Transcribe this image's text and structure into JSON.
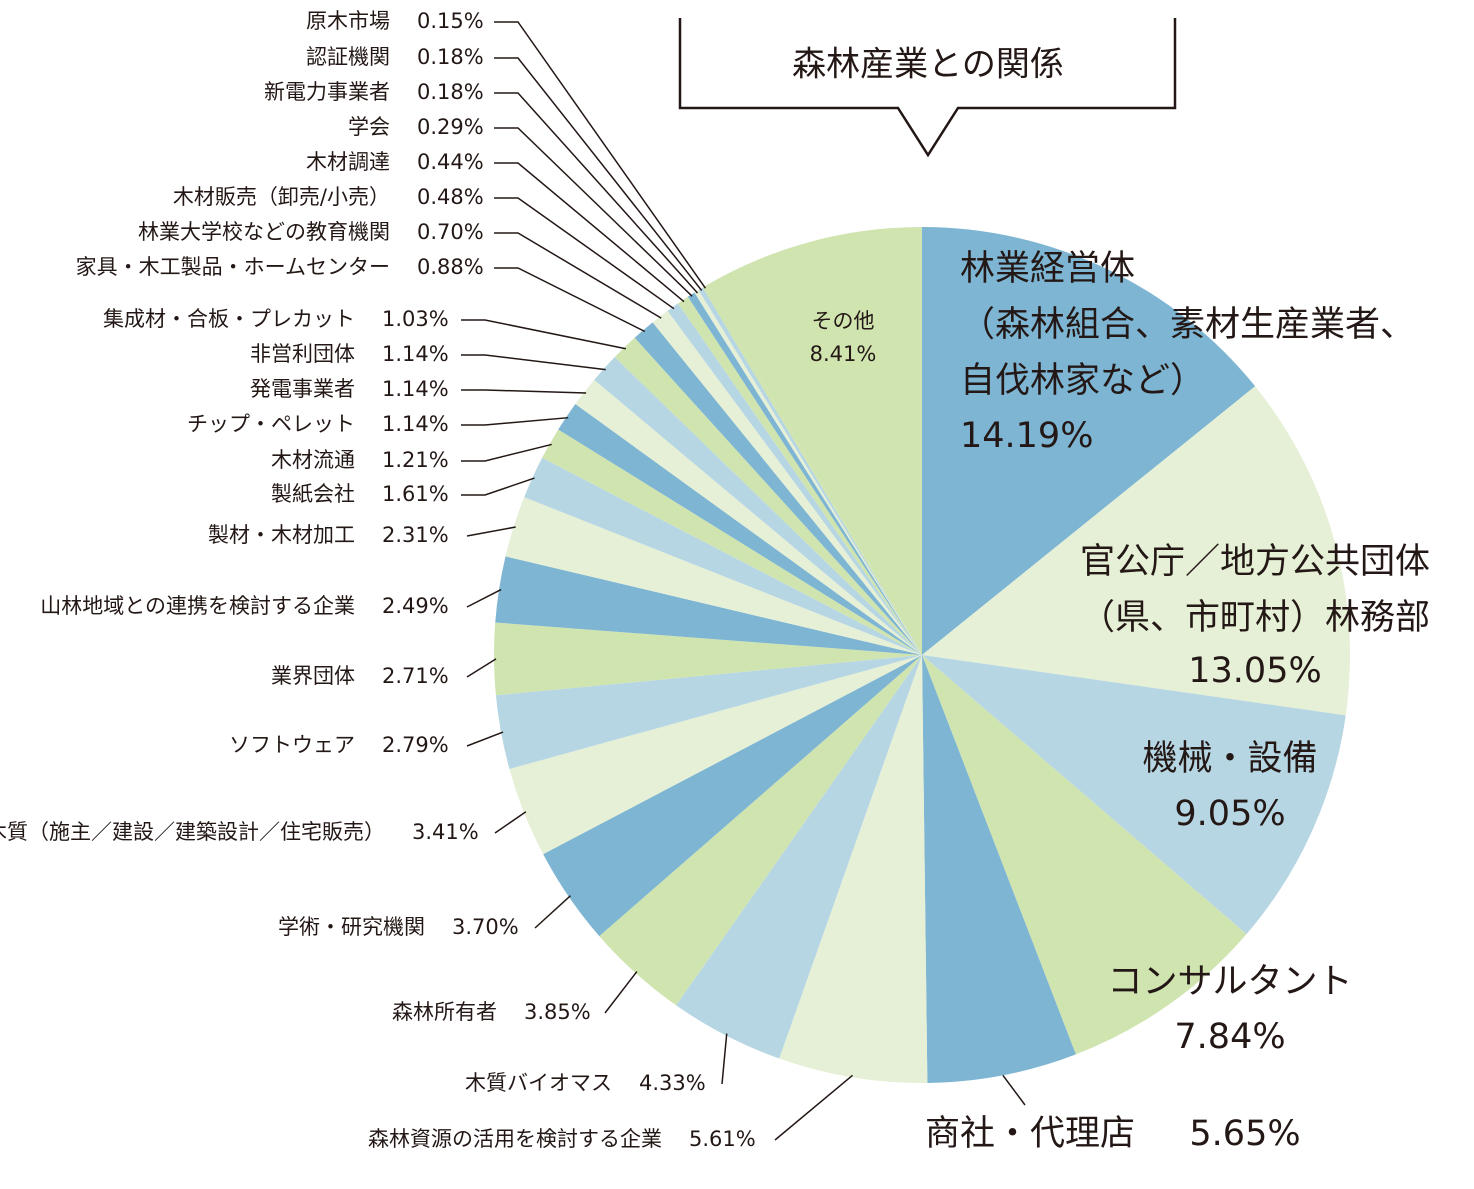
{
  "chart_data": {
    "type": "pie",
    "title": "森林産業との関係",
    "categories": [
      "林業経営体\n（森林組合、素材生産業者、\n自伐林家など）",
      "官公庁／地方公共団体\n（県、市町村）林務部",
      "機械・設備",
      "コンサルタント",
      "商社・代理店",
      "森林資源の活用を検討する企業",
      "木質バイオマス",
      "森林所有者",
      "学術・研究機関",
      "木造・木質（施主／建設／建築設計／住宅販売）",
      "ソフトウェア",
      "業界団体",
      "山林地域との連携を検討する企業",
      "製材・木材加工",
      "製紙会社",
      "木材流通",
      "チップ・ペレット",
      "発電事業者",
      "非営利団体",
      "集成材・合板・プレカット",
      "家具・木工製品・ホームセンター",
      "林業大学校などの教育機関",
      "木材販売（卸売/小売）",
      "木材調達",
      "学会",
      "新電力事業者",
      "認証機関",
      "原木市場",
      "その他"
    ],
    "values": [
      14.19,
      13.05,
      9.05,
      7.84,
      5.65,
      5.61,
      4.33,
      3.85,
      3.7,
      3.41,
      2.79,
      2.71,
      2.49,
      2.31,
      1.61,
      1.21,
      1.14,
      1.14,
      1.14,
      1.03,
      0.88,
      0.7,
      0.48,
      0.44,
      0.29,
      0.18,
      0.18,
      0.15,
      8.41
    ],
    "value_labels": [
      "14.19%",
      "13.05%",
      "9.05%",
      "7.84%",
      "5.65%",
      "5.61%",
      "4.33%",
      "3.85%",
      "3.70%",
      "3.41%",
      "2.79%",
      "2.71%",
      "2.49%",
      "2.31%",
      "1.61%",
      "1.21%",
      "1.14%",
      "1.14%",
      "1.14%",
      "1.03%",
      "0.88%",
      "0.70%",
      "0.48%",
      "0.44%",
      "0.29%",
      "0.18%",
      "0.18%",
      "0.15%",
      "8.41%"
    ],
    "colors": [
      "#7db5d3",
      "#e6f0d6",
      "#b7d6e4",
      "#d0e4b0",
      "#7db5d3",
      "#e6f0d6",
      "#b7d6e4",
      "#d0e4b0",
      "#7db5d3",
      "#e6f0d6",
      "#b7d6e4",
      "#d0e4b0",
      "#7db5d3",
      "#e6f0d6",
      "#b7d6e4",
      "#d0e4b0",
      "#7db5d3",
      "#e6f0d6",
      "#b7d6e4",
      "#d0e4b0",
      "#7db5d3",
      "#e6f0d6",
      "#b7d6e4",
      "#d0e4b0",
      "#7db5d3",
      "#e6f0d6",
      "#b7d6e4",
      "#d0e4b0",
      "#d0e4b0"
    ]
  }
}
